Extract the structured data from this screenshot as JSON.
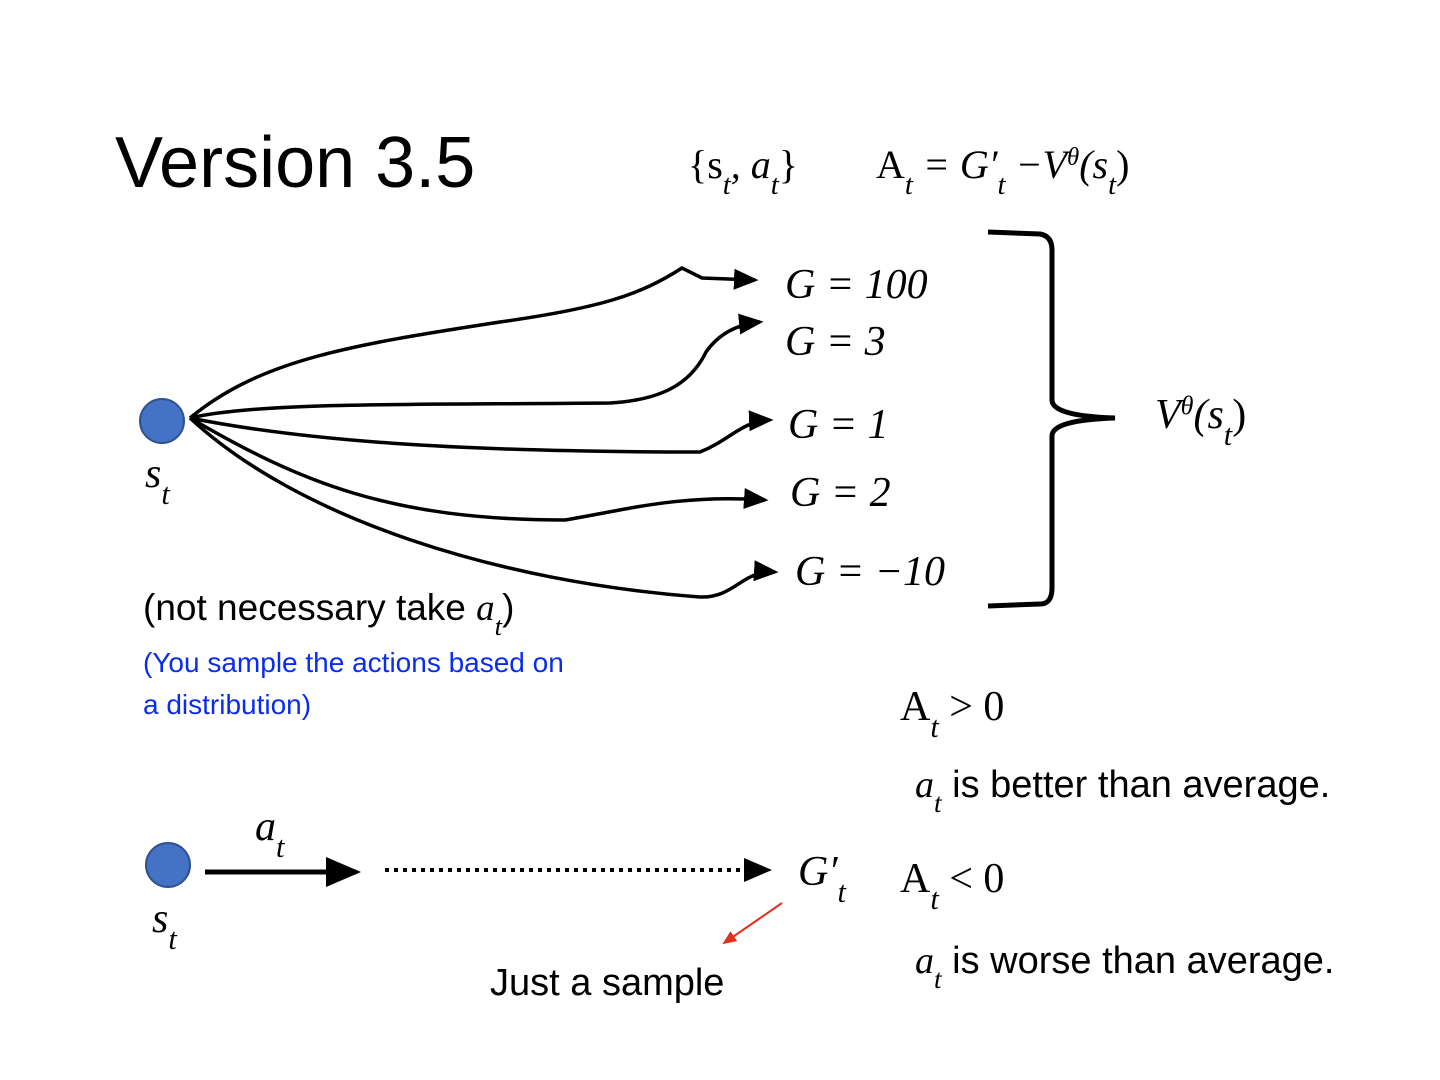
{
  "title": "Version 3.5",
  "header": {
    "pair": [
      "{s",
      "t",
      ", a",
      "t",
      "}"
    ],
    "advantage": [
      "A",
      "t",
      " = G′",
      "t",
      " −V",
      "θ",
      "(s",
      "t",
      ")"
    ]
  },
  "tree": {
    "state": [
      "s",
      "t"
    ],
    "returns": [
      "G = 100",
      "G = 3",
      "G = 1",
      "G = 2",
      "G = −10"
    ],
    "baseline": [
      "V",
      "θ",
      "(s",
      "t",
      ")"
    ],
    "note": [
      "(not necessary take ",
      "a",
      "t",
      ")"
    ],
    "hint": [
      "(You sample the actions based on",
      "a distribution)"
    ]
  },
  "sample": {
    "state": [
      "s",
      "t"
    ],
    "action": [
      "a",
      "t"
    ],
    "return": [
      "G′",
      "t"
    ],
    "caption": "Just a sample"
  },
  "cases": [
    {
      "condition": [
        "A",
        "t",
        " > 0"
      ],
      "meaning": [
        "a",
        "t",
        " is better than average."
      ]
    },
    {
      "condition": [
        "A",
        "t",
        " < 0"
      ],
      "meaning": [
        "a",
        "t",
        " is worse than average."
      ]
    }
  ]
}
